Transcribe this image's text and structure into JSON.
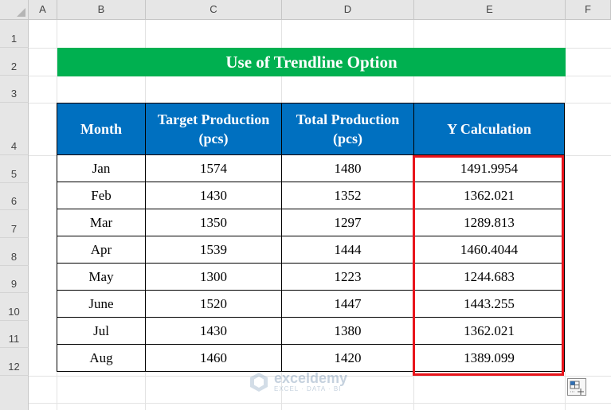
{
  "sheet": {
    "columns": [
      "A",
      "B",
      "C",
      "D",
      "E",
      "F"
    ],
    "rows": [
      "1",
      "2",
      "3",
      "4",
      "5",
      "6",
      "7",
      "8",
      "9",
      "10",
      "11",
      "12"
    ]
  },
  "title": "Use of Trendline Option",
  "table": {
    "headers": [
      {
        "line1": "Month",
        "line2": ""
      },
      {
        "line1": "Target Production",
        "line2": "(pcs)"
      },
      {
        "line1": "Total Production",
        "line2": "(pcs)"
      },
      {
        "line1": "Y Calculation",
        "line2": ""
      }
    ],
    "rows": [
      [
        "Jan",
        "1574",
        "1480",
        "1491.9954"
      ],
      [
        "Feb",
        "1430",
        "1352",
        "1362.021"
      ],
      [
        "Mar",
        "1350",
        "1297",
        "1289.813"
      ],
      [
        "Apr",
        "1539",
        "1444",
        "1460.4044"
      ],
      [
        "May",
        "1300",
        "1223",
        "1244.683"
      ],
      [
        "June",
        "1520",
        "1447",
        "1443.255"
      ],
      [
        "Jul",
        "1430",
        "1380",
        "1362.021"
      ],
      [
        "Aug",
        "1460",
        "1420",
        "1389.099"
      ]
    ]
  },
  "watermark": {
    "name": "exceldemy",
    "tagline": "EXCEL · DATA · BI"
  },
  "colors": {
    "title_bg": "#00b050",
    "header_bg": "#0070c0",
    "highlight_border": "#e8141b"
  },
  "icons": {
    "corner": "select-all-triangle-icon",
    "quick_analysis": "quick-analysis-icon"
  }
}
